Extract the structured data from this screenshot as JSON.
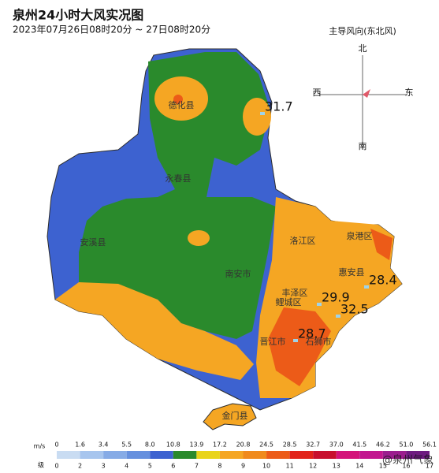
{
  "title": "泉州24小时大风实况图",
  "subtitle": "2023年07月26日08时20分 ~ 27日08时20分",
  "compass": {
    "title": "主导风向(东北风)",
    "north": "北",
    "south": "南",
    "west": "西",
    "east": "东"
  },
  "counties": [
    "德化县",
    "永春县",
    "安溪县",
    "南安市",
    "洛江区",
    "泉港区",
    "惠安县",
    "丰泽区",
    "鲤城区",
    "晋江市",
    "石狮市",
    "金门县"
  ],
  "stations": [
    31.7,
    29.9,
    32.5,
    28.4,
    28.7
  ],
  "legend": {
    "speed_unit": "m/s",
    "level_unit": "级",
    "speeds": [
      "0",
      "1.6",
      "3.4",
      "5.5",
      "8.0",
      "10.8",
      "13.9",
      "17.2",
      "20.8",
      "24.5",
      "28.5",
      "32.7",
      "37.0",
      "41.5",
      "46.2",
      "51.0",
      "56.1"
    ],
    "levels": [
      "0",
      "2",
      "3",
      "4",
      "5",
      "6",
      "7",
      "8",
      "9",
      "10",
      "11",
      "12",
      "13",
      "14",
      "15",
      "16",
      "17"
    ],
    "colors": [
      "#c9dcf2",
      "#a7c5ee",
      "#86abe6",
      "#6690de",
      "#3d62d0",
      "#2a8a2c",
      "#e9d41a",
      "#f5a623",
      "#f08a1c",
      "#ec5b18",
      "#e2231a",
      "#c8102e",
      "#d4147a",
      "#c2168f",
      "#9b1d8e",
      "#6e1a80"
    ]
  },
  "watermark": "@泉州气象"
}
